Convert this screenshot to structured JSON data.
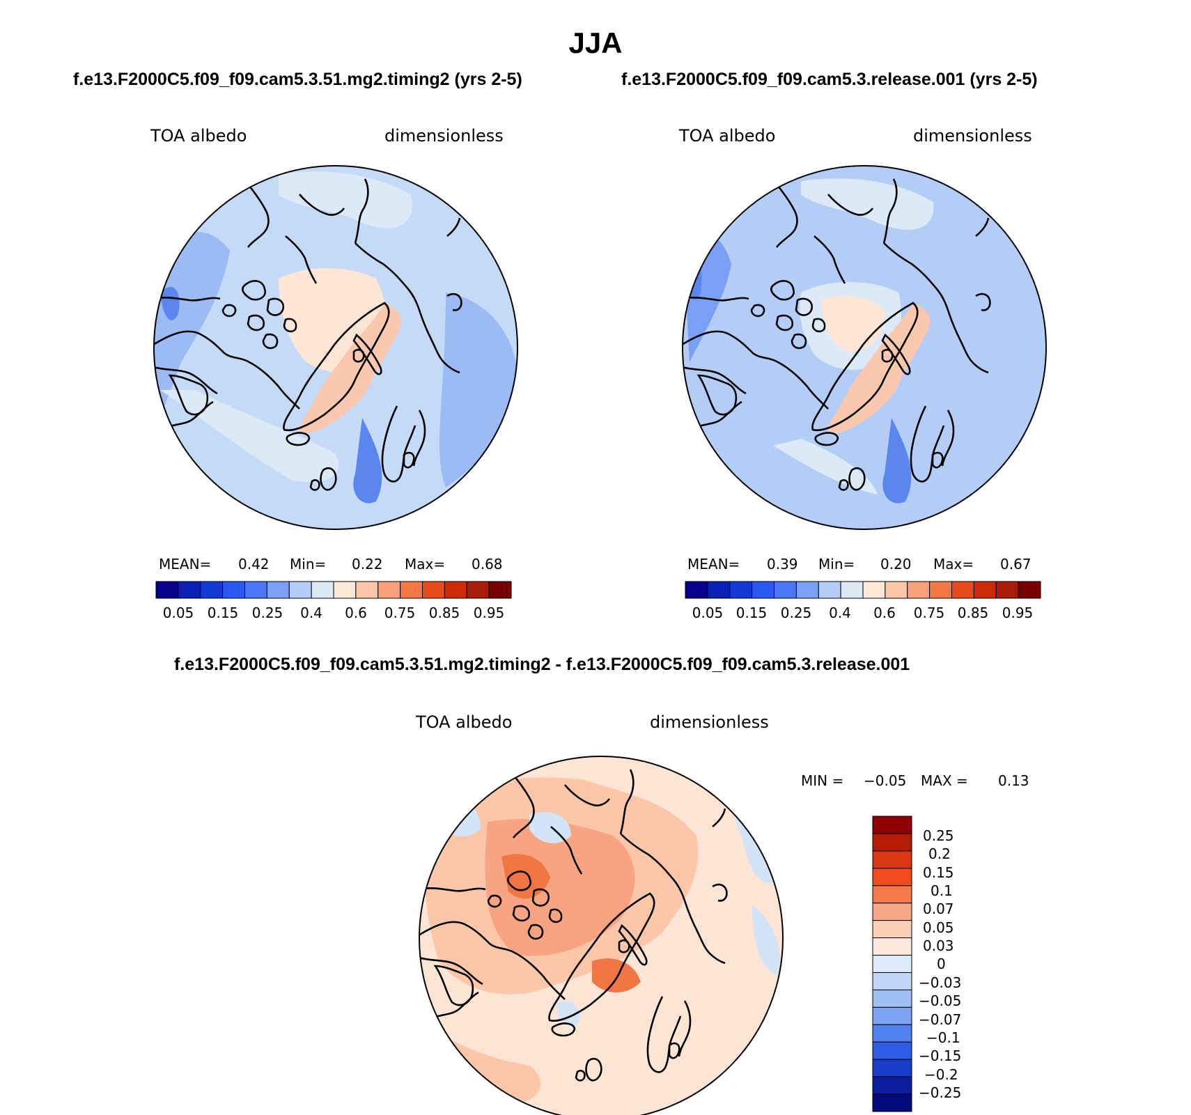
{
  "title": "JJA",
  "panels": [
    {
      "id": "test",
      "run_title": "f.e13.F2000C5.f09_f09.cam5.3.51.mg2.timing2 (yrs 2-5)",
      "variable": "TOA albedo",
      "units": "dimensionless",
      "stats": {
        "mean_label": "MEAN=",
        "mean": "0.42",
        "min_label": "Min=",
        "min": "0.22",
        "max_label": "Max=",
        "max": "0.68"
      }
    },
    {
      "id": "control",
      "run_title": "f.e13.F2000C5.f09_f09.cam5.3.release.001 (yrs 2-5)",
      "variable": "TOA albedo",
      "units": "dimensionless",
      "stats": {
        "mean_label": "MEAN=",
        "mean": "0.39",
        "min_label": "Min=",
        "min": "0.20",
        "max_label": "Max=",
        "max": "0.67"
      }
    }
  ],
  "abs_colorbar": {
    "colors": [
      "#08008c",
      "#0a1fb4",
      "#1238d6",
      "#2a58f2",
      "#4a78f5",
      "#7aa0f5",
      "#b4cdf7",
      "#dce9f7",
      "#fde8d8",
      "#fcc6a8",
      "#f8a07c",
      "#f47845",
      "#e84c1c",
      "#cc2a08",
      "#a81c08",
      "#7a0000"
    ],
    "tick_labels": [
      "0.05",
      "0.15",
      "0.25",
      "0.4",
      "0.6",
      "0.75",
      "0.85",
      "0.95"
    ]
  },
  "diff_panel": {
    "title": "f.e13.F2000C5.f09_f09.cam5.3.51.mg2.timing2 - f.e13.F2000C5.f09_f09.cam5.3.release.001",
    "variable": "TOA albedo",
    "units": "dimensionless",
    "min_label": "MIN =",
    "min": "−0.05",
    "max_label": "MAX =",
    "max": "0.13",
    "colorbar": {
      "colors": [
        "#8c0000",
        "#b41c04",
        "#d83614",
        "#f24c1e",
        "#f47a4a",
        "#f8a884",
        "#fcd0b6",
        "#fdeadc",
        "#dcebf9",
        "#c0d6f6",
        "#a0c0f4",
        "#7ca4f2",
        "#5282f0",
        "#2e5ee6",
        "#1a3cc8",
        "#0c1ca0",
        "#040a7c"
      ],
      "labels": [
        "0.25",
        "0.2",
        "0.15",
        "0.1",
        "0.07",
        "0.05",
        "0.03",
        "0",
        "−0.03",
        "−0.05",
        "−0.07",
        "−0.1",
        "−0.15",
        "−0.2",
        "−0.25"
      ]
    }
  },
  "fields": {
    "ocean_test": "#cfe2f8",
    "ocean_control": "#b8cff6",
    "ocean_diff": "#fde5d6",
    "ice_abs": "#fde6d6",
    "greenland_abs": "#f9c8ae",
    "low_abs": "#9cbaf3",
    "deep_abs": "#5a86ee",
    "diff_pos": "#f8a482",
    "diff_hi": "#f07744",
    "diff_neg": "#d4e4f7"
  }
}
